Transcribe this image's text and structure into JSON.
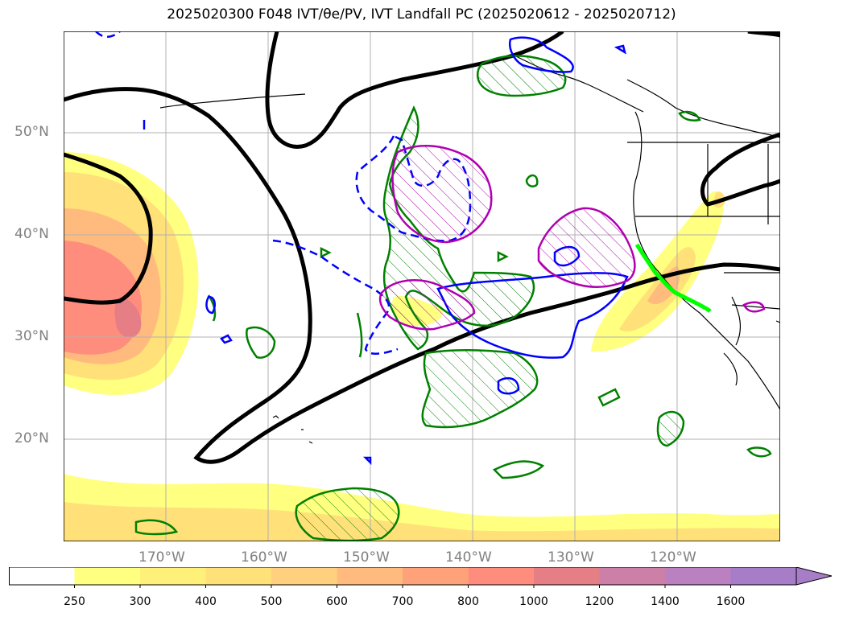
{
  "title": "2025020300 F048 IVT/θe/PV, IVT Landfall PC (2025020612 - 2025020712)",
  "latitude_labels": [
    "50°N",
    "40°N",
    "30°N",
    "20°N"
  ],
  "longitude_labels": [
    "170°W",
    "160°W",
    "150°W",
    "140°W",
    "130°W",
    "120°W"
  ],
  "colorbar": {
    "ticks": [
      "250",
      "300",
      "400",
      "500",
      "600",
      "700",
      "800",
      "1000",
      "1200",
      "1400",
      "1600"
    ],
    "colors": [
      "#ffffff",
      "#ffff80",
      "#fff07a",
      "#ffe079",
      "#ffd07e",
      "#ffbb7e",
      "#ffa27a",
      "#ff8d7e",
      "#e67e86",
      "#cc80a8",
      "#bb80c0",
      "#a87dc7"
    ],
    "extend": "max"
  },
  "legend_colors": {
    "ivt_fill_low": "#ffff80",
    "ivt_fill_high": "#e67e86",
    "theta_e_contour": "#000000",
    "pv_contour_green": "#008000",
    "pv_contour_blue": "#0000ff",
    "pv_contour_magenta": "#b000b0",
    "landfall_line": "#00ff00"
  },
  "chart_data": {
    "type": "map",
    "projection": "PlateCarree",
    "extent": {
      "lon_min": -180,
      "lon_max": -110,
      "lat_min": 10,
      "lat_max": 60
    },
    "gridlines": true
  }
}
